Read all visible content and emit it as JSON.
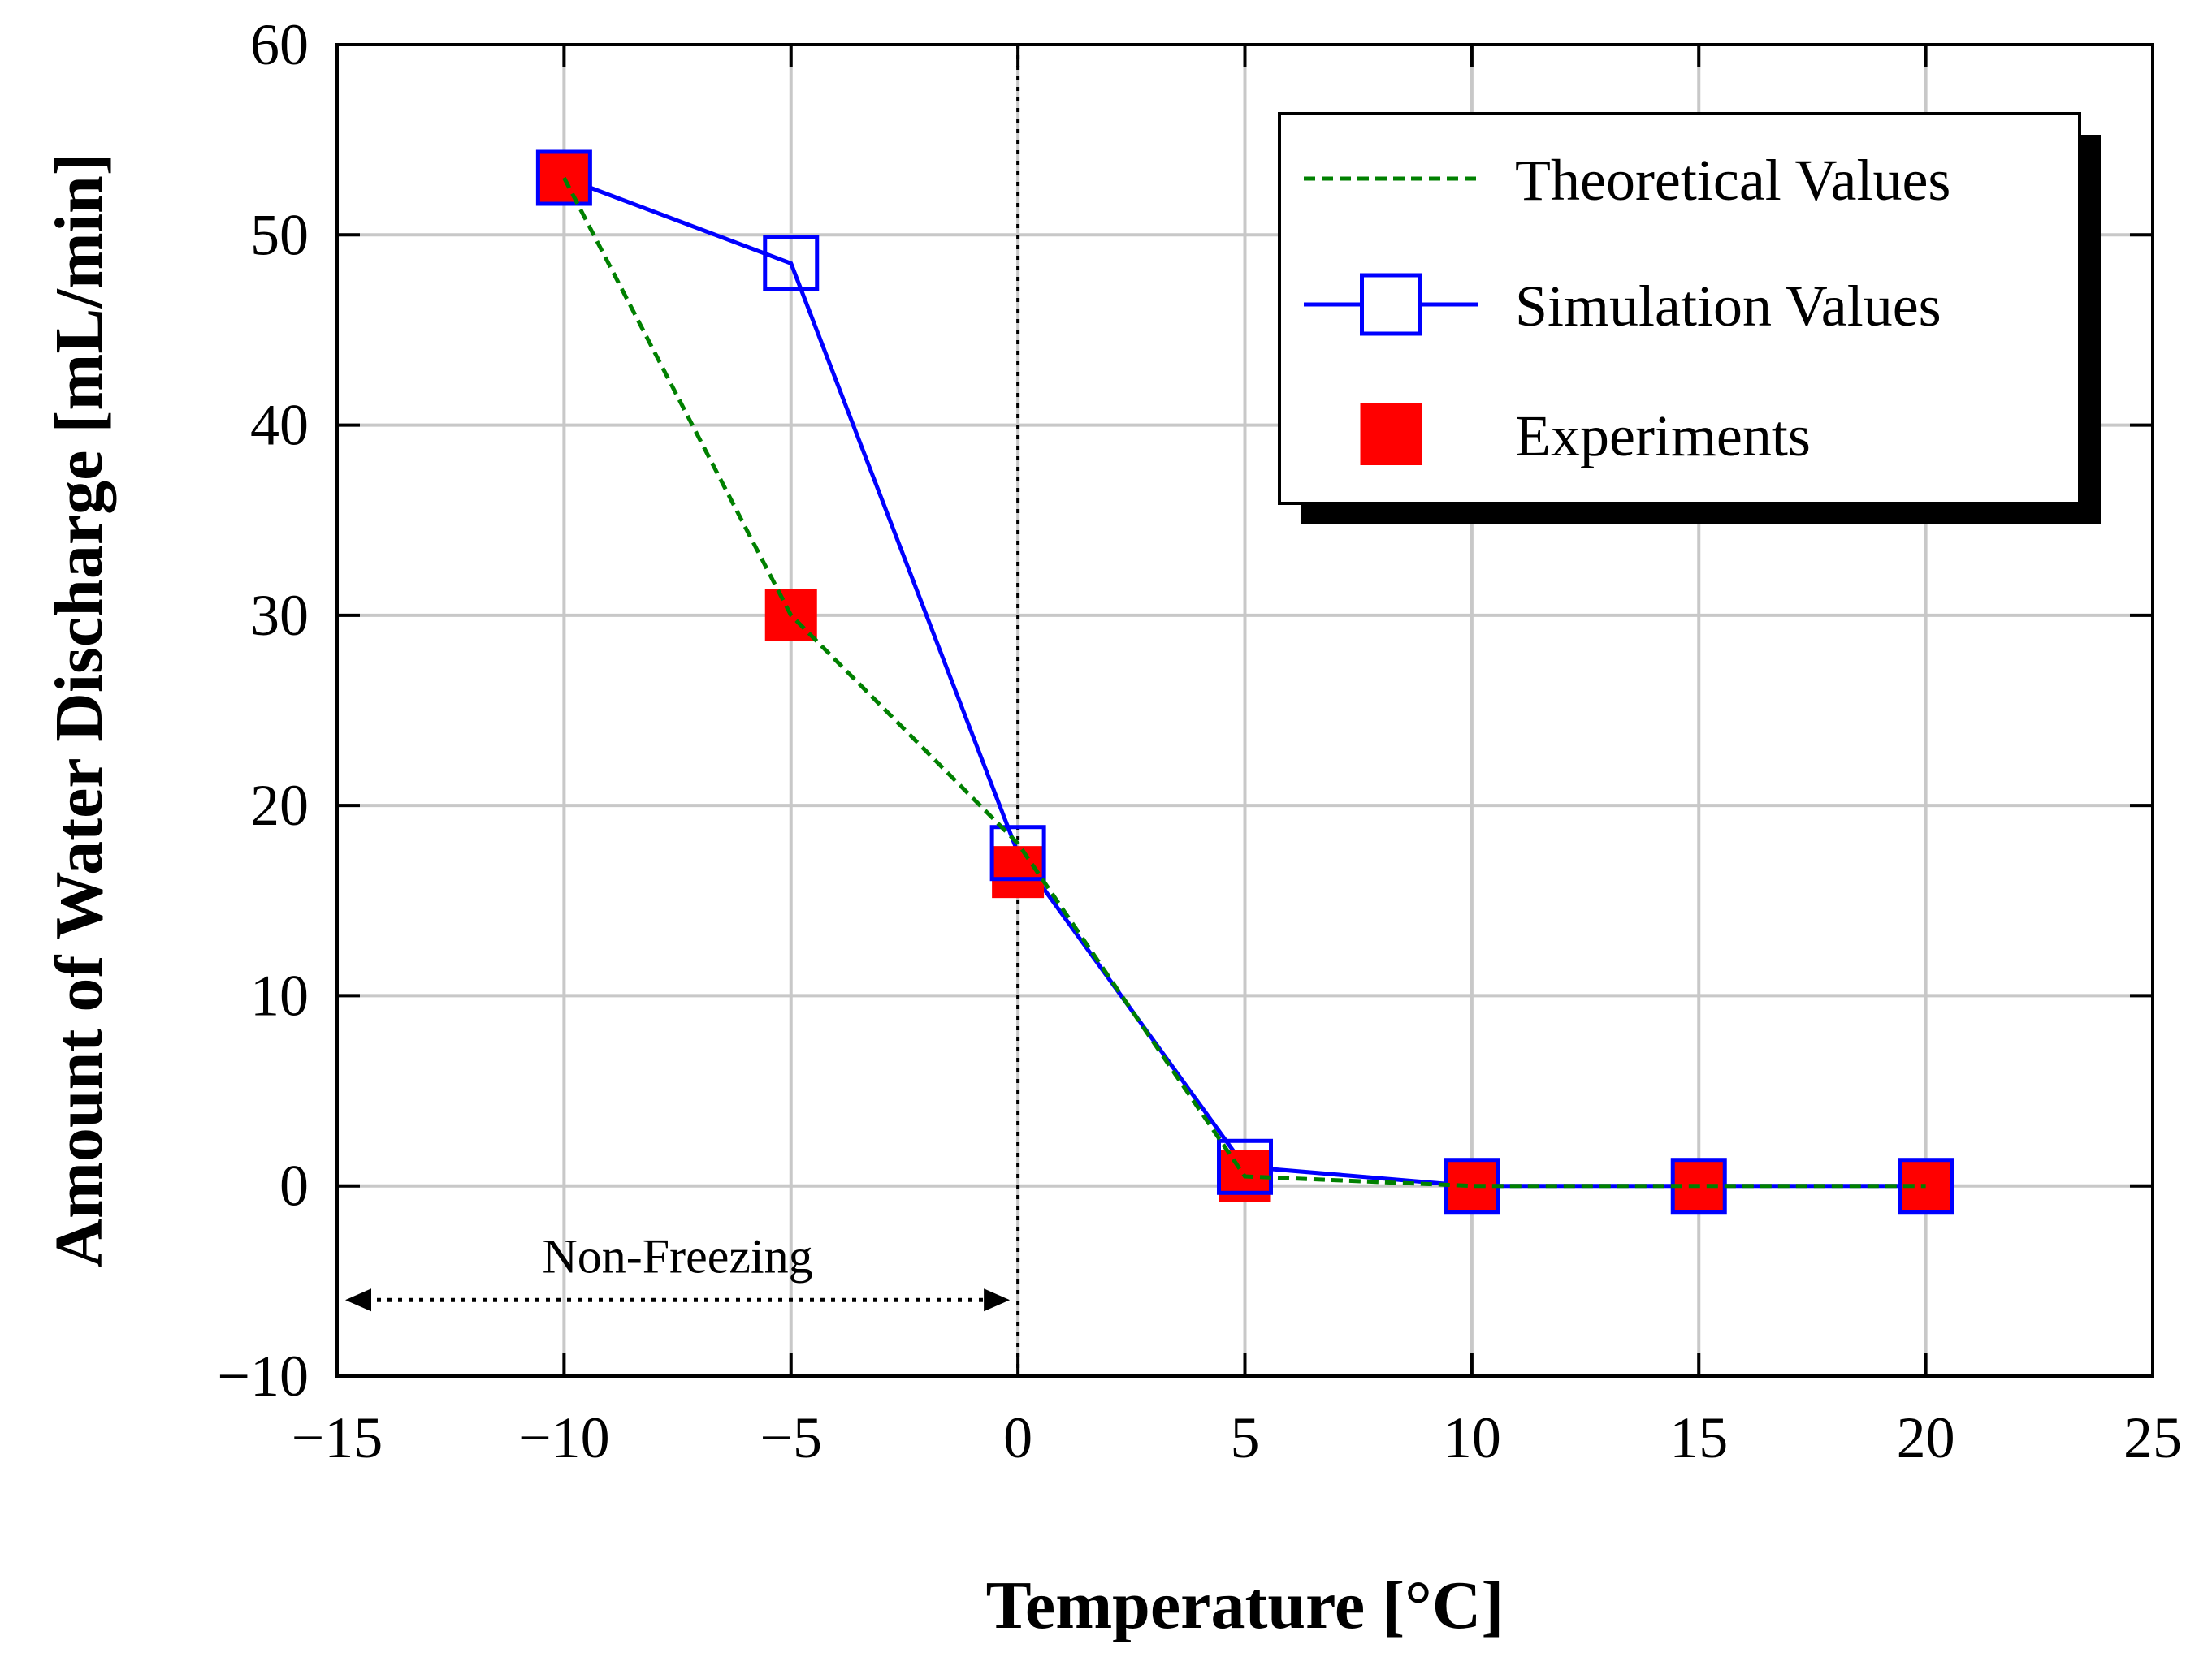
{
  "chart_data": {
    "type": "line",
    "title": "",
    "xlabel": "Temperature [°C]",
    "ylabel": "Amount of Water Discharge [mL/min]",
    "xlim": [
      -15,
      25
    ],
    "ylim": [
      -10,
      60
    ],
    "xticks": [
      -15,
      -10,
      -5,
      0,
      5,
      10,
      15,
      20,
      25
    ],
    "yticks": [
      -10,
      0,
      10,
      20,
      30,
      40,
      50,
      60
    ],
    "xtick_labels": [
      "−15",
      "−10",
      "−5",
      "0",
      "5",
      "10",
      "15",
      "20",
      "25"
    ],
    "ytick_labels": [
      "−10",
      "0",
      "10",
      "20",
      "30",
      "40",
      "50",
      "60"
    ],
    "grid": true,
    "legend_position": "top-right",
    "series": [
      {
        "name": "Theoretical Values",
        "style": "dashed-line",
        "color": "#008000",
        "x": [
          -10,
          -5,
          0,
          5,
          10,
          15,
          20
        ],
        "y": [
          53,
          30,
          18,
          0.5,
          0,
          0,
          0
        ]
      },
      {
        "name": "Simulation Values",
        "style": "line-open-square",
        "color": "#0000ff",
        "x": [
          -10,
          -5,
          0,
          5,
          10,
          15,
          20
        ],
        "y": [
          53,
          48.5,
          17.5,
          1,
          0,
          0,
          0
        ]
      },
      {
        "name": "Experiments",
        "style": "filled-square",
        "color": "#ff0000",
        "x": [
          -10,
          -5,
          0,
          5,
          10,
          15,
          20
        ],
        "y": [
          53,
          30,
          16.5,
          0.5,
          0,
          0,
          0
        ]
      }
    ],
    "reference_line": {
      "x": 0,
      "style": "dotted",
      "color": "#000000"
    },
    "annotations": [
      {
        "text": "Non-Freezing",
        "x_from": -15,
        "x_to": 0,
        "y": -6,
        "style": "dotted double arrow"
      }
    ]
  }
}
